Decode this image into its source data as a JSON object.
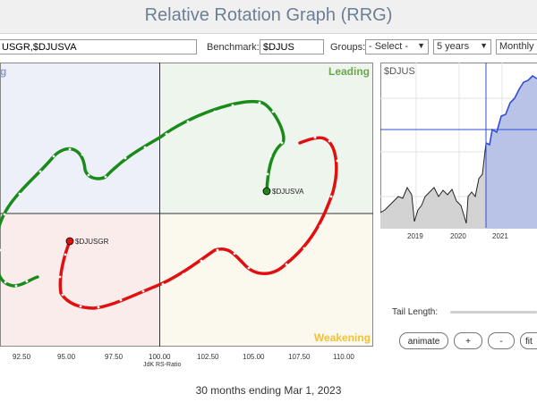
{
  "header": {
    "title": "Relative Rotation Graph (RRG)"
  },
  "toolbar": {
    "symbols_value": "USGR,$DJUSVA",
    "benchmark_label": "Benchmark:",
    "benchmark_value": "$DJUS",
    "groups_label": "Groups:",
    "groups_value": "- Select -",
    "period_value": "5 years",
    "interval_value": "Monthly"
  },
  "quadrants": {
    "leading": "Leading",
    "weakening": "Weakening"
  },
  "colors": {
    "leading_label": "#6aa84f",
    "weakening_label": "#f1c232",
    "green_tail": "#1a8a1a",
    "red_tail": "#e01010"
  },
  "series": [
    {
      "symbol": "$DJUSVA",
      "color": "#1a8a1a"
    },
    {
      "symbol": "$DJUSGR",
      "color": "#e01010"
    }
  ],
  "x_axis": {
    "label": "JdK RS-Ratio",
    "ticks": [
      "92.50",
      "95.00",
      "97.50",
      "100.00",
      "102.50",
      "105.00",
      "107.50",
      "110.00"
    ]
  },
  "price_chart": {
    "symbol": "$DJUS",
    "years": [
      "2019",
      "2020",
      "2021"
    ]
  },
  "tail": {
    "label": "Tail Length:"
  },
  "buttons": {
    "animate": "animate",
    "plus": "+",
    "minus": "-",
    "fit": "fit"
  },
  "footer": {
    "period_text": "30 months ending Mar 1, 2023"
  }
}
